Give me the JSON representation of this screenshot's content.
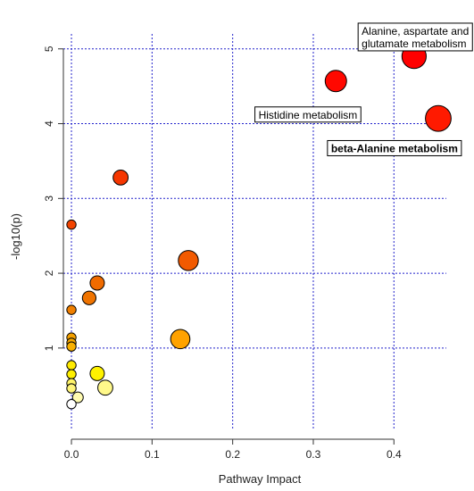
{
  "chart_data": {
    "type": "scatter",
    "title": "",
    "xlabel": "Pathway Impact",
    "ylabel": "-log10(p)",
    "xlim": [
      -0.01,
      0.465
    ],
    "ylim": [
      -0.1,
      5.2
    ],
    "x_ticks": [
      0.0,
      0.1,
      0.2,
      0.3,
      0.4
    ],
    "x_tick_labels": [
      "0.0",
      "0.1",
      "0.2",
      "0.3",
      "0.4"
    ],
    "y_ticks": [
      1,
      2,
      3,
      4,
      5
    ],
    "y_tick_labels": [
      "1",
      "2",
      "3",
      "4",
      "5"
    ],
    "grid": true,
    "grid_color": "#2222cc",
    "points": [
      {
        "x": 0.425,
        "y": 4.9,
        "size": 3.4,
        "color": "#ff0000"
      },
      {
        "x": 0.328,
        "y": 4.57,
        "size": 3.0,
        "color": "#ff0800"
      },
      {
        "x": 0.455,
        "y": 4.07,
        "size": 3.6,
        "color": "#ff1a00"
      },
      {
        "x": 0.061,
        "y": 3.28,
        "size": 2.1,
        "color": "#f53600"
      },
      {
        "x": 0.0,
        "y": 2.65,
        "size": 1.3,
        "color": "#f24400"
      },
      {
        "x": 0.145,
        "y": 2.17,
        "size": 2.8,
        "color": "#f25a00"
      },
      {
        "x": 0.032,
        "y": 1.87,
        "size": 2.0,
        "color": "#f06b00"
      },
      {
        "x": 0.022,
        "y": 1.67,
        "size": 1.9,
        "color": "#f07400"
      },
      {
        "x": 0.0,
        "y": 1.51,
        "size": 1.3,
        "color": "#f07f00"
      },
      {
        "x": 0.0,
        "y": 1.14,
        "size": 1.3,
        "color": "#f4a000"
      },
      {
        "x": 0.0,
        "y": 1.07,
        "size": 1.3,
        "color": "#f7a800"
      },
      {
        "x": 0.0,
        "y": 1.02,
        "size": 1.3,
        "color": "#f9b000"
      },
      {
        "x": 0.135,
        "y": 1.12,
        "size": 2.7,
        "color": "#ffa200"
      },
      {
        "x": 0.0,
        "y": 0.77,
        "size": 1.3,
        "color": "#ffea00"
      },
      {
        "x": 0.0,
        "y": 0.65,
        "size": 1.3,
        "color": "#fff000"
      },
      {
        "x": 0.032,
        "y": 0.66,
        "size": 2.0,
        "color": "#fff200"
      },
      {
        "x": 0.0,
        "y": 0.53,
        "size": 1.3,
        "color": "#fff46a"
      },
      {
        "x": 0.0,
        "y": 0.46,
        "size": 1.3,
        "color": "#fff57a"
      },
      {
        "x": 0.042,
        "y": 0.47,
        "size": 2.1,
        "color": "#fff88a"
      },
      {
        "x": 0.008,
        "y": 0.34,
        "size": 1.5,
        "color": "#fffbb0"
      },
      {
        "x": 0.0,
        "y": 0.25,
        "size": 1.3,
        "color": "#ffffff"
      }
    ],
    "annotations": [
      {
        "text_lines": [
          "Alanine, aspartate and",
          "glutamate metabolism"
        ],
        "bold": false,
        "anchor_x": 0.36,
        "anchor_y": 5.32
      },
      {
        "text_lines": [
          "Histidine metabolism"
        ],
        "bold": false,
        "anchor_x": 0.232,
        "anchor_y": 4.2
      },
      {
        "text_lines": [
          "beta-Alanine metabolism"
        ],
        "bold": true,
        "anchor_x": 0.322,
        "anchor_y": 3.75
      }
    ]
  }
}
